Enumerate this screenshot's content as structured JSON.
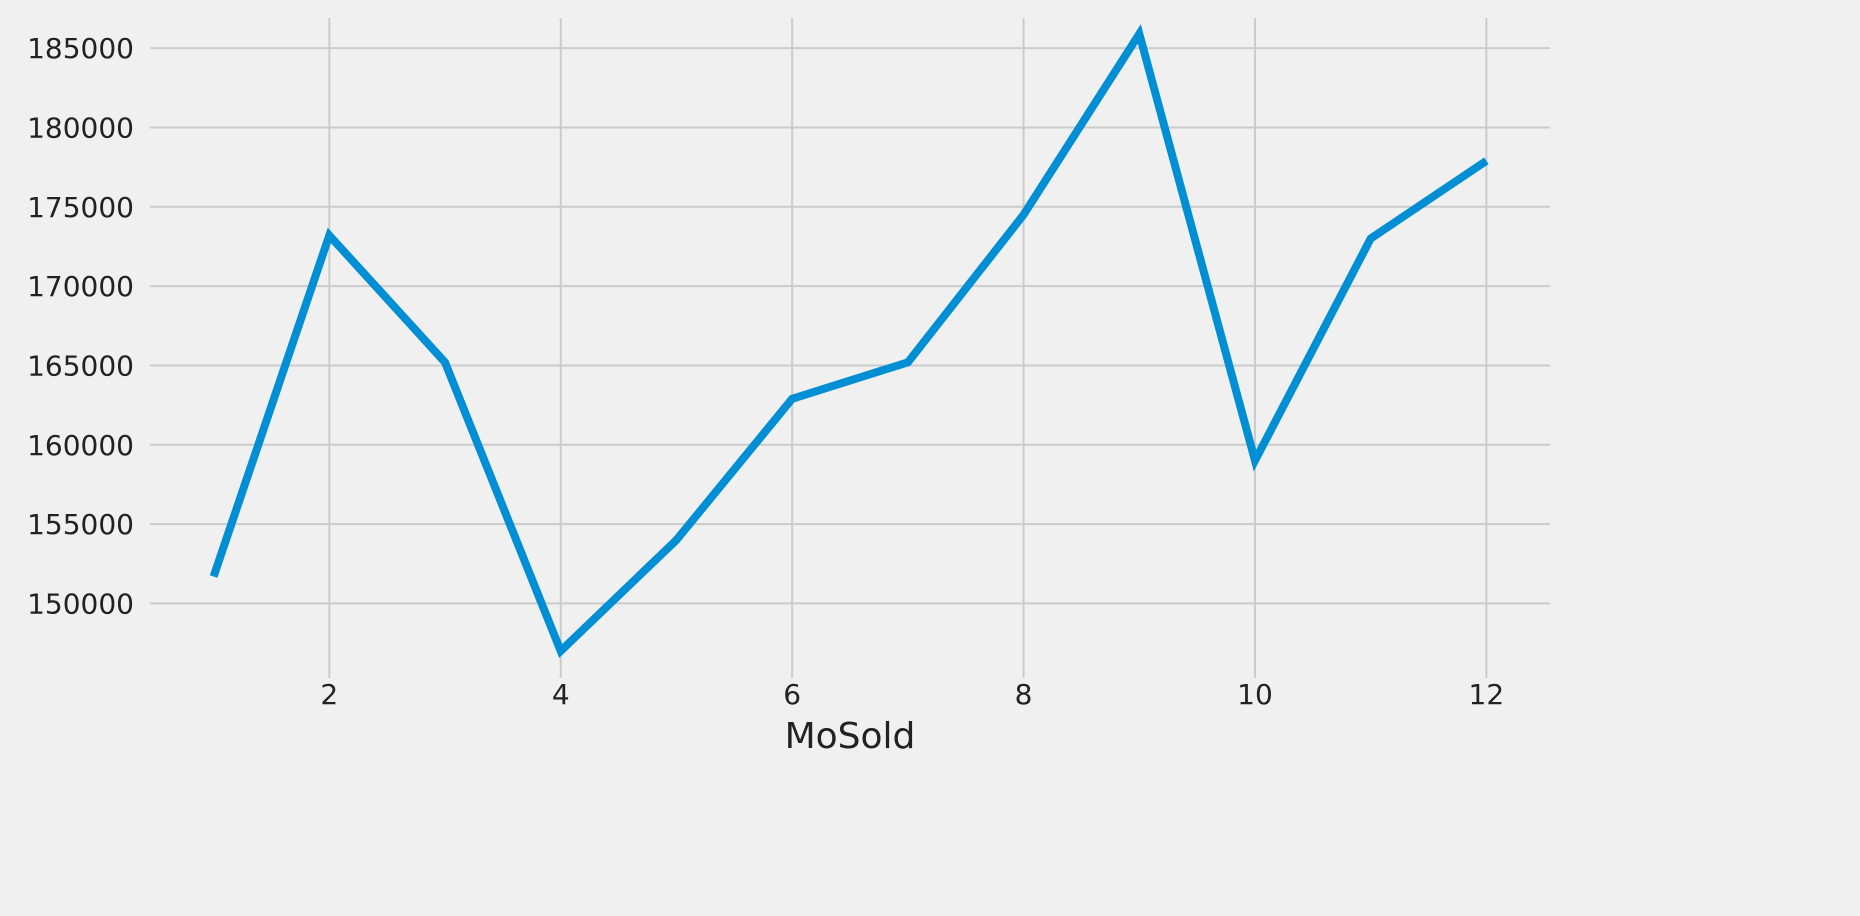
{
  "chart_data": {
    "type": "line",
    "xlabel": "MoSold",
    "ylabel": "",
    "xlim": [
      0.45,
      12.55
    ],
    "ylim": [
      145300,
      186900
    ],
    "x_ticks": [
      2,
      4,
      6,
      8,
      10,
      12
    ],
    "y_ticks": [
      150000,
      155000,
      160000,
      165000,
      170000,
      175000,
      180000,
      185000
    ],
    "grid": true,
    "series": [
      {
        "color": "#008fd5",
        "x": [
          1,
          2,
          3,
          4,
          5,
          6,
          7,
          8,
          9,
          10,
          11,
          12
        ],
        "values": [
          151700,
          173200,
          165200,
          147000,
          154000,
          162900,
          165200,
          174500,
          185900,
          159000,
          173000,
          177900
        ]
      }
    ]
  }
}
